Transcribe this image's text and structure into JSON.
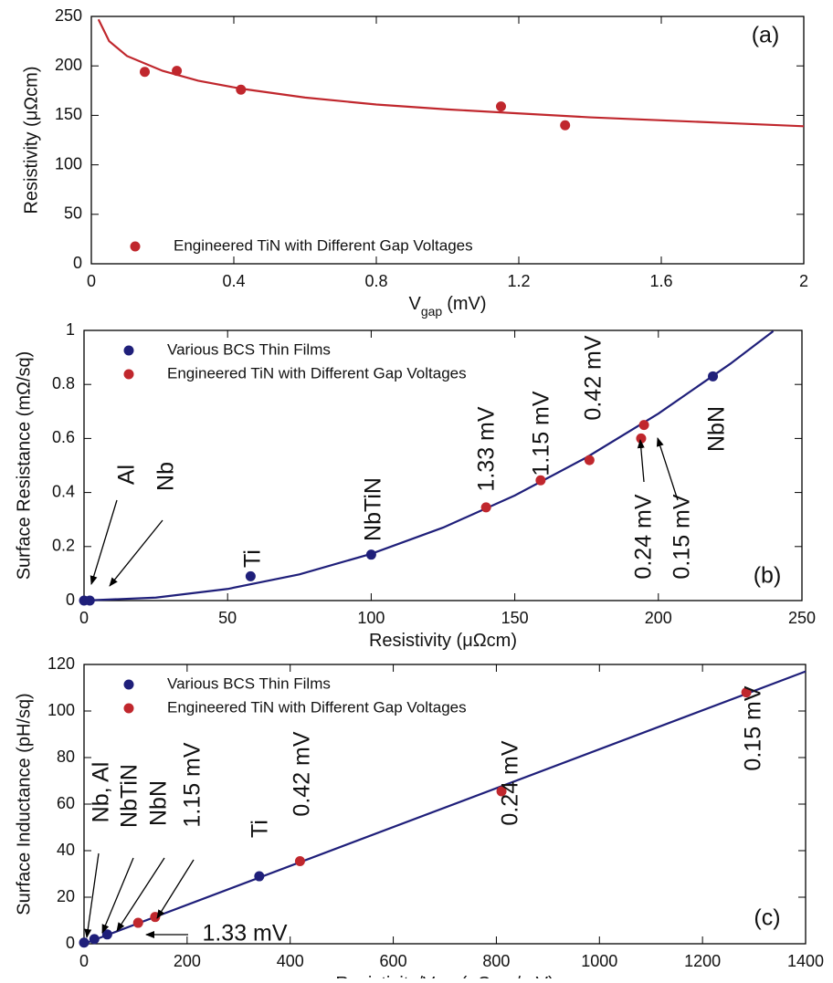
{
  "chart_data": [
    {
      "type": "scatter",
      "annotations": [
        "(a)"
      ],
      "xlabel": [
        "V",
        "gap",
        "(mV)"
      ],
      "ylabel": "Resistivity (μΩcm)",
      "xlim": [
        0,
        2
      ],
      "xticks": [
        0,
        0.4,
        0.8,
        1.2,
        1.6,
        2
      ],
      "ylim": [
        0,
        250
      ],
      "yticks": [
        0,
        50,
        100,
        150,
        200,
        250
      ],
      "legend": "lower left",
      "series": [
        {
          "mode": "line",
          "color": "#c0272d",
          "x": [
            0.02,
            0.05,
            0.1,
            0.2,
            0.3,
            0.42,
            0.6,
            0.8,
            1.0,
            1.2,
            1.4,
            1.6,
            1.8,
            2.0
          ],
          "values": [
            247,
            225,
            210,
            195,
            185,
            177,
            168,
            161,
            156,
            152,
            148,
            145,
            142,
            139
          ]
        },
        {
          "mode": "markers",
          "name": "Engineered TiN with Different Gap Voltages",
          "color": "#c0272d",
          "x": [
            0.15,
            0.24,
            0.42,
            1.15,
            1.33
          ],
          "values": [
            194,
            195,
            176,
            159,
            140
          ]
        }
      ]
    },
    {
      "type": "scatter",
      "annotations": [
        "Al",
        "Nb",
        "Ti",
        "NbTiN",
        "NbN",
        "1.33 mV",
        "1.15 mV",
        "0.42 mV",
        "0.24 mV",
        "0.15 mV",
        "(b)"
      ],
      "xlabel": [
        "Resistivity (μΩcm)"
      ],
      "ylabel": "Surface Resistance (mΩ/sq)",
      "xlim": [
        0,
        250
      ],
      "xticks": [
        0,
        50,
        100,
        150,
        200,
        250
      ],
      "ylim": [
        0,
        1
      ],
      "yticks": [
        0,
        0.2,
        0.4,
        0.6,
        0.8,
        1
      ],
      "legend": "upper left",
      "series": [
        {
          "mode": "line",
          "color": "#1f1f7a",
          "x": [
            0,
            25,
            50,
            75,
            100,
            125,
            150,
            175,
            200,
            225,
            240
          ],
          "values": [
            0,
            0.011,
            0.043,
            0.097,
            0.173,
            0.27,
            0.389,
            0.53,
            0.692,
            0.876,
            0.997
          ]
        },
        {
          "mode": "markers",
          "name": "Various BCS Thin Films",
          "color": "#1f1f7a",
          "x": [
            0,
            2,
            58,
            100,
            219
          ],
          "values": [
            0,
            0,
            0.09,
            0.17,
            0.83
          ]
        },
        {
          "mode": "markers",
          "name": "Engineered TiN with Different Gap Voltages",
          "color": "#c0272d",
          "x": [
            140,
            159,
            176,
            194,
            195
          ],
          "values": [
            0.345,
            0.445,
            0.52,
            0.6,
            0.65
          ]
        }
      ]
    },
    {
      "type": "scatter",
      "annotations": [
        "Nb, Al",
        "NbTiN",
        "NbN",
        "1.15 mV",
        "1.33 mV",
        "Ti",
        "0.42 mV",
        "0.24 mV",
        "0.15 mV",
        "(c)"
      ],
      "xlabel": [
        "Resistivity/V",
        "gap",
        "(μΩcm/mV)"
      ],
      "ylabel": "Surface Inductance (pH/sq)",
      "xlim": [
        0,
        1400
      ],
      "xticks": [
        0,
        200,
        400,
        600,
        800,
        1000,
        1200,
        1400
      ],
      "ylim": [
        0,
        120
      ],
      "yticks": [
        0,
        20,
        40,
        60,
        80,
        100,
        120
      ],
      "legend": "upper left",
      "series": [
        {
          "mode": "line",
          "color": "#1f1f7a",
          "x": [
            0,
            1400
          ],
          "values": [
            0,
            117
          ]
        },
        {
          "mode": "markers",
          "name": "Various BCS Thin Films",
          "color": "#1f1f7a",
          "x": [
            0,
            20,
            45,
            340
          ],
          "values": [
            0.5,
            2,
            4,
            29
          ]
        },
        {
          "mode": "markers",
          "name": "Engineered TiN with Different Gap Voltages",
          "color": "#c0272d",
          "x": [
            105,
            138,
            419,
            810,
            1285
          ],
          "values": [
            9,
            11.5,
            35.5,
            65.5,
            108
          ]
        }
      ]
    }
  ]
}
